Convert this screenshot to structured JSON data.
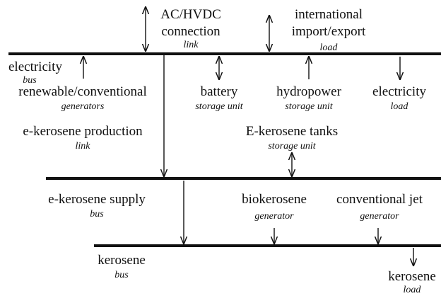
{
  "nodes": [
    {
      "label": [
        "AC/HVDC",
        "connection"
      ],
      "kind": "link"
    },
    {
      "label": [
        "international",
        "import/export"
      ],
      "kind": "load"
    },
    {
      "label": [
        "electricity"
      ],
      "kind": "bus"
    },
    {
      "label": [
        "renewable/conventional"
      ],
      "kind": "generators"
    },
    {
      "label": [
        "battery"
      ],
      "kind": "storage unit"
    },
    {
      "label": [
        "hydropower"
      ],
      "kind": "storage unit"
    },
    {
      "label": [
        "electricity"
      ],
      "kind": "load"
    },
    {
      "label": [
        "e-kerosene production"
      ],
      "kind": "link"
    },
    {
      "label": [
        "E-kerosene tanks"
      ],
      "kind": "storage unit"
    },
    {
      "label": [
        "e-kerosene supply"
      ],
      "kind": "bus"
    },
    {
      "label": [
        "biokerosene"
      ],
      "kind": "generator"
    },
    {
      "label": [
        "conventional jet"
      ],
      "kind": "generator"
    },
    {
      "label": [
        "kerosene"
      ],
      "kind": "bus"
    },
    {
      "label": [
        "kerosene"
      ],
      "kind": "load"
    }
  ]
}
